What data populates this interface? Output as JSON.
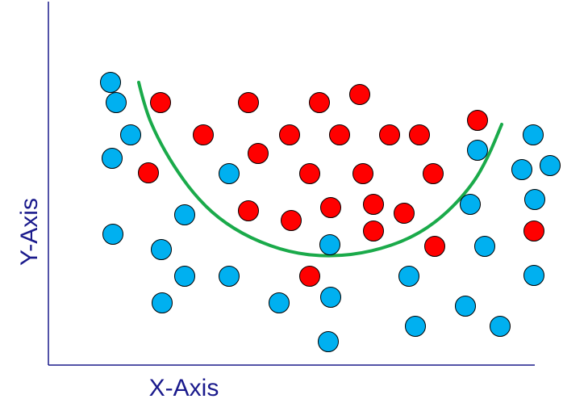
{
  "chart_data": {
    "type": "scatter",
    "title": "",
    "xlabel": "X-Axis",
    "ylabel": "Y-Axis",
    "grid": false,
    "legend": "none",
    "colors": {
      "class_a": "#00b0f0",
      "class_b": "#ff0000",
      "boundary": "#1aaa4a",
      "axis": "#1a1a8c",
      "marker_edge": "#000000"
    },
    "series": [
      {
        "color": "#00b0f0",
        "points": [
          [
            137,
            102
          ],
          [
            144,
            127
          ],
          [
            162,
            167
          ],
          [
            139,
            196
          ],
          [
            140,
            290
          ],
          [
            229,
            266
          ],
          [
            200,
            309
          ],
          [
            284,
            215
          ],
          [
            229,
            342
          ],
          [
            284,
            342
          ],
          [
            201,
            375
          ],
          [
            346,
            375
          ],
          [
            409,
            303
          ],
          [
            410,
            368
          ],
          [
            407,
            423
          ],
          [
            507,
            342
          ],
          [
            515,
            404
          ],
          [
            577,
            379
          ],
          [
            620,
            404
          ],
          [
            583,
            253
          ],
          [
            601,
            305
          ],
          [
            592,
            186
          ],
          [
            661,
            167
          ],
          [
            647,
            210
          ],
          [
            682,
            205
          ],
          [
            663,
            247
          ],
          [
            662,
            341
          ]
        ]
      },
      {
        "color": "#ff0000",
        "points": [
          [
            199,
            127
          ],
          [
            308,
            127
          ],
          [
            396,
            127
          ],
          [
            446,
            117
          ],
          [
            252,
            167
          ],
          [
            359,
            167
          ],
          [
            421,
            167
          ],
          [
            483,
            167
          ],
          [
            520,
            167
          ],
          [
            592,
            149
          ],
          [
            184,
            214
          ],
          [
            320,
            190
          ],
          [
            384,
            215
          ],
          [
            450,
            215
          ],
          [
            537,
            215
          ],
          [
            308,
            261
          ],
          [
            361,
            273
          ],
          [
            410,
            257
          ],
          [
            463,
            253
          ],
          [
            501,
            264
          ],
          [
            463,
            286
          ],
          [
            539,
            305
          ],
          [
            384,
            342
          ],
          [
            662,
            286
          ]
        ]
      }
    ],
    "boundary_curve": {
      "color": "#1aaa4a",
      "points": [
        [
          172,
          102
        ],
        [
          180,
          135
        ],
        [
          195,
          170
        ],
        [
          215,
          205
        ],
        [
          240,
          240
        ],
        [
          270,
          270
        ],
        [
          310,
          295
        ],
        [
          360,
          313
        ],
        [
          410,
          318
        ],
        [
          460,
          312
        ],
        [
          510,
          295
        ],
        [
          550,
          268
        ],
        [
          585,
          230
        ],
        [
          605,
          195
        ],
        [
          622,
          154
        ]
      ]
    }
  }
}
